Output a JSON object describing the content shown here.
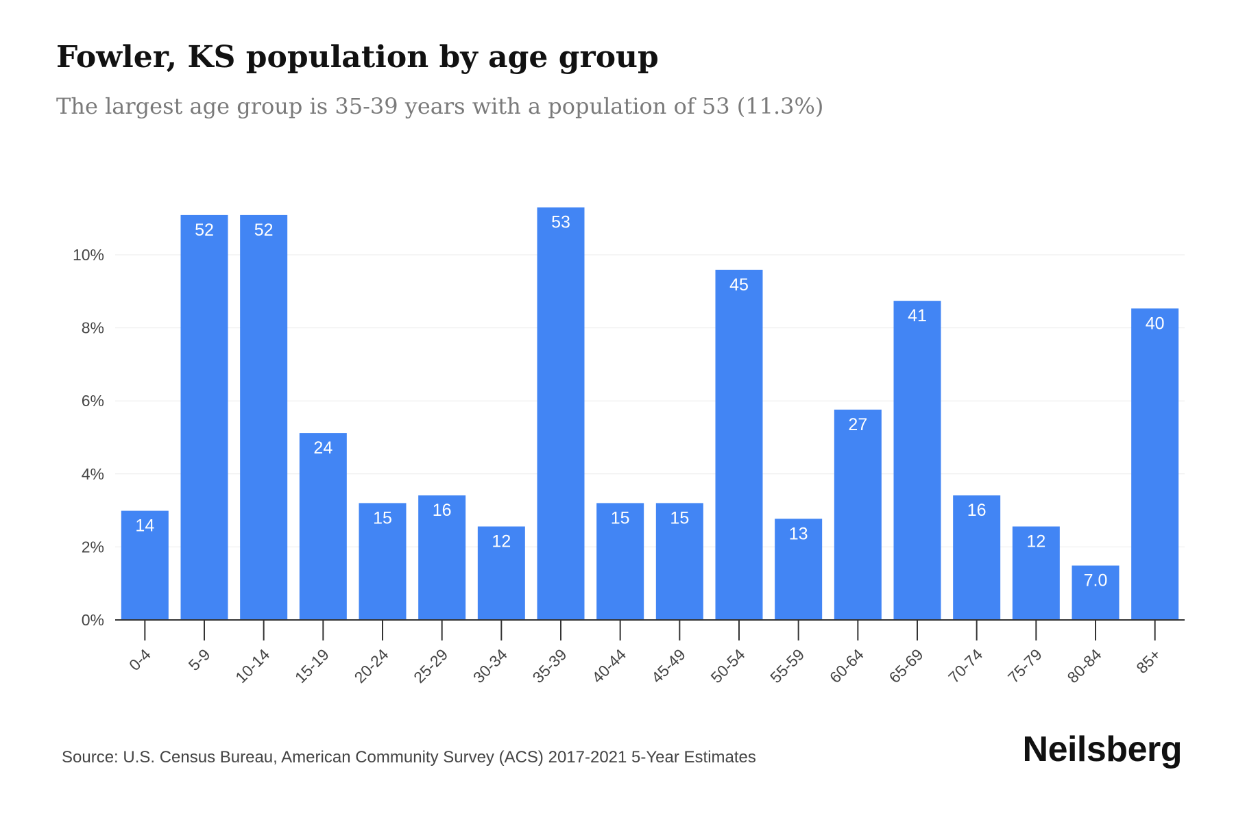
{
  "header": {
    "title": "Fowler, KS population by age group",
    "subtitle": "The largest age group is 35-39 years with a population of 53 (11.3%)"
  },
  "footer": {
    "source": "Source: U.S. Census Bureau, American Community Survey (ACS) 2017-2021 5-Year Estimates",
    "brand": "Neilsberg"
  },
  "colors": {
    "bar": "#4285f4",
    "bar_label": "#ffffff",
    "grid": "#ebebeb",
    "axis": "#333333",
    "tick_text": "#444444"
  },
  "chart_data": {
    "type": "bar",
    "title": "Fowler, KS population by age group",
    "subtitle": "The largest age group is 35-39 years with a population of 53 (11.3%)",
    "xlabel": "",
    "ylabel": "",
    "categories": [
      "0-4",
      "5-9",
      "10-14",
      "15-19",
      "20-24",
      "25-29",
      "30-34",
      "35-39",
      "40-44",
      "45-49",
      "50-54",
      "55-59",
      "60-64",
      "65-69",
      "70-74",
      "75-79",
      "80-84",
      "85+"
    ],
    "series": [
      {
        "values": [
          2.99,
          11.09,
          11.09,
          5.12,
          3.2,
          3.41,
          2.56,
          11.3,
          3.2,
          3.2,
          9.59,
          2.77,
          5.76,
          8.74,
          3.41,
          2.56,
          1.49,
          8.53
        ],
        "labels": [
          "14",
          "52",
          "52",
          "24",
          "15",
          "16",
          "12",
          "53",
          "15",
          "15",
          "45",
          "13",
          "27",
          "41",
          "16",
          "12",
          "7.0",
          "40"
        ]
      }
    ],
    "yticks": [
      0,
      2,
      4,
      6,
      8,
      10
    ],
    "ytick_labels": [
      "0%",
      "2%",
      "4%",
      "6%",
      "8%",
      "10%"
    ],
    "ylim": [
      0,
      12
    ],
    "grid": true,
    "legend": "none"
  }
}
